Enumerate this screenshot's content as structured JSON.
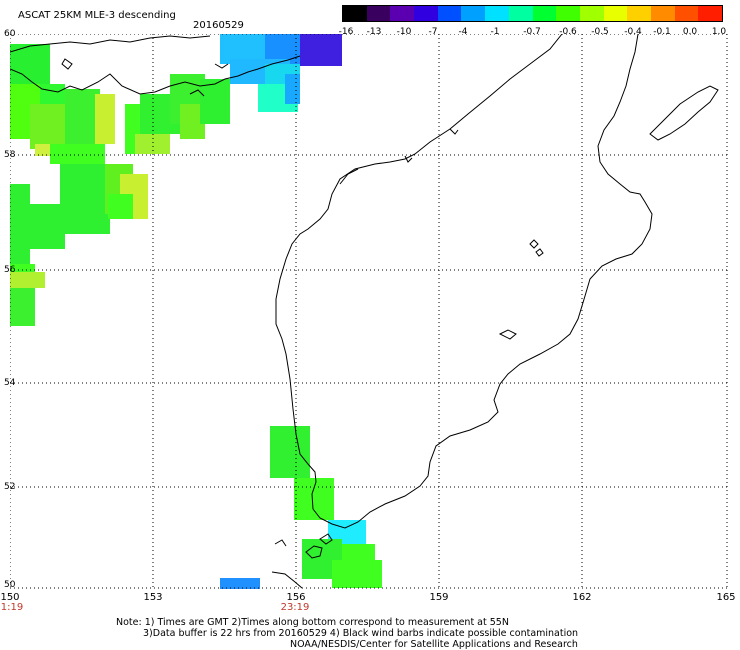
{
  "header": {
    "title": "ASCAT 25KM MLE-3 descending",
    "date": "20160529"
  },
  "colorbar": {
    "labels": [
      "-16",
      "-13",
      "-10",
      "-7",
      "-4",
      "-1",
      "-0.7",
      "-0.6",
      "-0.5",
      "-0.4",
      "-0.1",
      "0.0",
      "1.0"
    ],
    "colors": [
      "#000000",
      "#3a0060",
      "#5a00b0",
      "#3000e0",
      "#0050ff",
      "#00a0ff",
      "#00e0ff",
      "#00ffa0",
      "#00ff30",
      "#40ff00",
      "#a0ff00",
      "#e8ff00",
      "#ffd000",
      "#ff8c00",
      "#ff5000",
      "#ff1e00"
    ]
  },
  "axes": {
    "latitude_labels": [
      "60",
      "58",
      "56",
      "54",
      "52",
      "50"
    ],
    "longitude_labels": [
      "150",
      "153",
      "156",
      "159",
      "162",
      "165"
    ],
    "time_labels": [
      "1:19",
      "23:19"
    ]
  },
  "notes": {
    "line1": "Note: 1) Times are GMT 2)Times along bottom correspond to measurement at 55N",
    "line2": "3)Data buffer is 22 hrs from 20160529 4) Black wind barbs indicate possible contamination",
    "line3": "NOAA/NESDIS/Center for Satellite Applications and Research"
  },
  "colors": {
    "time_label": "#c0392b",
    "grid": "#000000"
  }
}
